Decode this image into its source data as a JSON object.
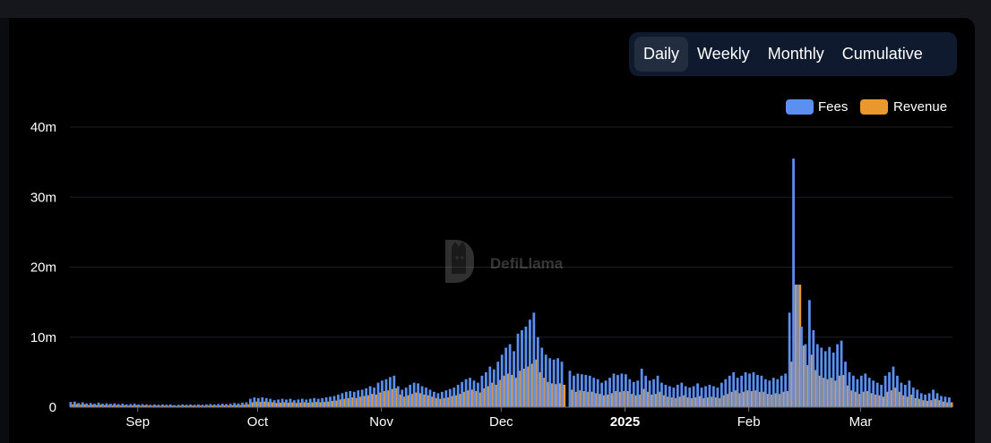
{
  "tabs": [
    {
      "label": "Daily",
      "active": true
    },
    {
      "label": "Weekly",
      "active": false
    },
    {
      "label": "Monthly",
      "active": false
    },
    {
      "label": "Cumulative",
      "active": false
    }
  ],
  "watermark": {
    "text": "DefiLlama"
  },
  "colors": {
    "fees": "#5b8ff0",
    "revenue": "#e8982c",
    "grid": "#1f2126",
    "axis_text": "#ffffff"
  },
  "chart_data": {
    "type": "bar",
    "title": "",
    "xlabel": "",
    "ylabel": "",
    "ylim": [
      0,
      40000000
    ],
    "yticks": [
      {
        "value": 0,
        "label": "0"
      },
      {
        "value": 10000000,
        "label": "10m"
      },
      {
        "value": 20000000,
        "label": "20m"
      },
      {
        "value": 30000000,
        "label": "30m"
      },
      {
        "value": 40000000,
        "label": "40m"
      }
    ],
    "xticks": [
      {
        "date": "2024-09-01",
        "label": "Sep",
        "bold": false
      },
      {
        "date": "2024-10-01",
        "label": "Oct",
        "bold": false
      },
      {
        "date": "2024-11-01",
        "label": "Nov",
        "bold": false
      },
      {
        "date": "2024-12-01",
        "label": "Dec",
        "bold": false
      },
      {
        "date": "2025-01-01",
        "label": "2025",
        "bold": true
      },
      {
        "date": "2025-02-01",
        "label": "Feb",
        "bold": false
      },
      {
        "date": "2025-03-01",
        "label": "Mar",
        "bold": false
      }
    ],
    "legend": {
      "position": "top-right"
    },
    "grid": true,
    "x_start": "2024-08-15",
    "x_end": "2025-03-23",
    "series": [
      {
        "name": "Fees",
        "values": [
          0.75,
          0.8,
          0.6,
          0.7,
          0.55,
          0.6,
          0.5,
          0.65,
          0.5,
          0.55,
          0.5,
          0.55,
          0.45,
          0.5,
          0.4,
          0.45,
          0.5,
          0.4,
          0.45,
          0.4,
          0.35,
          0.4,
          0.35,
          0.4,
          0.35,
          0.4,
          0.3,
          0.35,
          0.4,
          0.35,
          0.4,
          0.35,
          0.4,
          0.35,
          0.4,
          0.45,
          0.4,
          0.45,
          0.5,
          0.45,
          0.5,
          0.6,
          0.55,
          0.65,
          0.7,
          1.2,
          1.4,
          1.3,
          1.4,
          1.3,
          1.2,
          1.0,
          1.1,
          1.2,
          1.1,
          1.2,
          1.0,
          1.1,
          1.2,
          1.1,
          1.2,
          1.3,
          1.2,
          1.3,
          1.4,
          1.5,
          1.6,
          1.8,
          2.0,
          2.2,
          2.3,
          2.2,
          2.4,
          2.5,
          2.7,
          3.0,
          2.8,
          3.5,
          3.8,
          4.0,
          4.3,
          4.5,
          3.0,
          2.5,
          2.8,
          3.2,
          3.5,
          3.4,
          3.0,
          2.8,
          2.5,
          2.2,
          2.0,
          2.2,
          2.4,
          2.6,
          2.8,
          3.2,
          3.6,
          4.0,
          4.2,
          3.8,
          3.5,
          4.5,
          5.0,
          5.8,
          5.4,
          6.5,
          7.5,
          8.5,
          9.0,
          8.0,
          10.5,
          11.0,
          11.5,
          12.5,
          13.5,
          10.0,
          8.5,
          7.5,
          7.0,
          6.8,
          7.0,
          6.5,
          0,
          5.2,
          4.5,
          4.8,
          4.7,
          4.6,
          4.5,
          4.2,
          4.0,
          3.5,
          3.8,
          4.2,
          4.8,
          4.6,
          4.8,
          4.7,
          4.0,
          3.6,
          3.8,
          5.5,
          4.5,
          3.8,
          4.0,
          4.5,
          3.5,
          3.2,
          3.0,
          2.8,
          3.2,
          3.5,
          3.0,
          2.8,
          3.0,
          3.4,
          2.8,
          3.0,
          3.2,
          3.0,
          2.8,
          3.5,
          4.0,
          4.5,
          5.0,
          4.2,
          4.5,
          5.0,
          4.8,
          5.0,
          4.6,
          4.5,
          4.0,
          3.8,
          4.2,
          4.0,
          4.5,
          4.8,
          13.5,
          35.5,
          17.5,
          11.5,
          9.0,
          15.3,
          11.0,
          9.0,
          8.5,
          8.0,
          8.6,
          7.8,
          9.0,
          9.5,
          6.5,
          5.0,
          4.5,
          4.0,
          4.5,
          4.8,
          4.2,
          3.8,
          3.5,
          3.2,
          4.5,
          5.0,
          5.8,
          4.5,
          3.5,
          3.2,
          3.8,
          2.8,
          2.5,
          2.0,
          1.8,
          2.0,
          2.5,
          2.0,
          1.6,
          1.5,
          1.4,
          1.3,
          1.2,
          1.1,
          1.0,
          1.1,
          1.0,
          0.9,
          1.2,
          1.0,
          1.1,
          1.3,
          0.9,
          1.0,
          0.9,
          0.8,
          0.9,
          0.8,
          0.9,
          0.8,
          0.9,
          0.8,
          0.7,
          0.9,
          0.8,
          0.7,
          0.8,
          0.7,
          0.9,
          0.8,
          0.7,
          0.9,
          1.3
        ]
      },
      {
        "name": "Revenue",
        "values": [
          0.4,
          0.45,
          0.35,
          0.4,
          0.3,
          0.35,
          0.3,
          0.35,
          0.3,
          0.3,
          0.28,
          0.3,
          0.25,
          0.28,
          0.22,
          0.25,
          0.28,
          0.22,
          0.25,
          0.22,
          0.2,
          0.22,
          0.2,
          0.22,
          0.2,
          0.22,
          0.18,
          0.2,
          0.22,
          0.2,
          0.22,
          0.2,
          0.22,
          0.2,
          0.22,
          0.25,
          0.22,
          0.25,
          0.28,
          0.25,
          0.28,
          0.3,
          0.3,
          0.35,
          0.4,
          0.7,
          0.8,
          0.75,
          0.8,
          0.75,
          0.7,
          0.6,
          0.65,
          0.7,
          0.65,
          0.7,
          0.6,
          0.65,
          0.7,
          0.65,
          0.7,
          0.75,
          0.7,
          0.75,
          0.8,
          0.9,
          0.95,
          1.1,
          1.2,
          1.3,
          1.4,
          1.3,
          1.5,
          1.6,
          1.7,
          1.9,
          1.8,
          2.1,
          2.3,
          2.4,
          2.6,
          2.7,
          1.8,
          1.5,
          1.7,
          1.9,
          2.1,
          2.0,
          1.8,
          1.7,
          1.5,
          1.3,
          1.2,
          1.3,
          1.4,
          1.6,
          1.7,
          1.9,
          2.2,
          2.4,
          2.5,
          2.3,
          2.1,
          2.7,
          3.0,
          3.5,
          3.2,
          3.9,
          4.5,
          4.8,
          4.6,
          4.2,
          5.2,
          5.5,
          5.8,
          6.2,
          6.8,
          5.0,
          4.2,
          3.6,
          3.4,
          3.3,
          3.4,
          3.2,
          0,
          2.5,
          2.2,
          2.4,
          2.3,
          2.2,
          2.2,
          2.0,
          1.9,
          1.7,
          1.8,
          2.0,
          2.3,
          2.2,
          2.3,
          2.3,
          1.9,
          1.7,
          1.8,
          2.6,
          2.2,
          1.8,
          1.9,
          2.2,
          1.7,
          1.5,
          1.4,
          1.3,
          1.5,
          1.7,
          1.4,
          1.3,
          1.4,
          1.6,
          1.3,
          1.4,
          1.5,
          1.4,
          1.3,
          1.7,
          1.9,
          2.2,
          2.4,
          2.0,
          2.2,
          2.4,
          2.3,
          2.4,
          2.2,
          2.2,
          1.9,
          1.8,
          2.0,
          1.9,
          2.2,
          2.3,
          6.5,
          17.5,
          17.5,
          8.8,
          6.0,
          7.5,
          5.3,
          4.5,
          4.2,
          4.0,
          4.2,
          3.8,
          4.5,
          4.6,
          3.1,
          2.4,
          2.2,
          1.9,
          2.2,
          2.3,
          2.0,
          1.8,
          1.7,
          1.5,
          2.2,
          2.4,
          2.8,
          2.2,
          1.7,
          1.5,
          1.8,
          1.3,
          1.2,
          1.0,
          0.9,
          1.0,
          1.2,
          1.0,
          0.8,
          0.7,
          0.7,
          0.6,
          0.6,
          0.55,
          0.5,
          0.55,
          0.5,
          0.45,
          0.6,
          0.5,
          0.55,
          0.65,
          0.45,
          0.5,
          0.45,
          0.4,
          0.45,
          0.4,
          0.45,
          0.4,
          0.45,
          0.4,
          0.35,
          0.45,
          0.4,
          0.35,
          0.4,
          0.35,
          0.45,
          0.4,
          0.35,
          0.45,
          0.6
        ]
      }
    ],
    "value_unit_multiplier": 1000000
  }
}
